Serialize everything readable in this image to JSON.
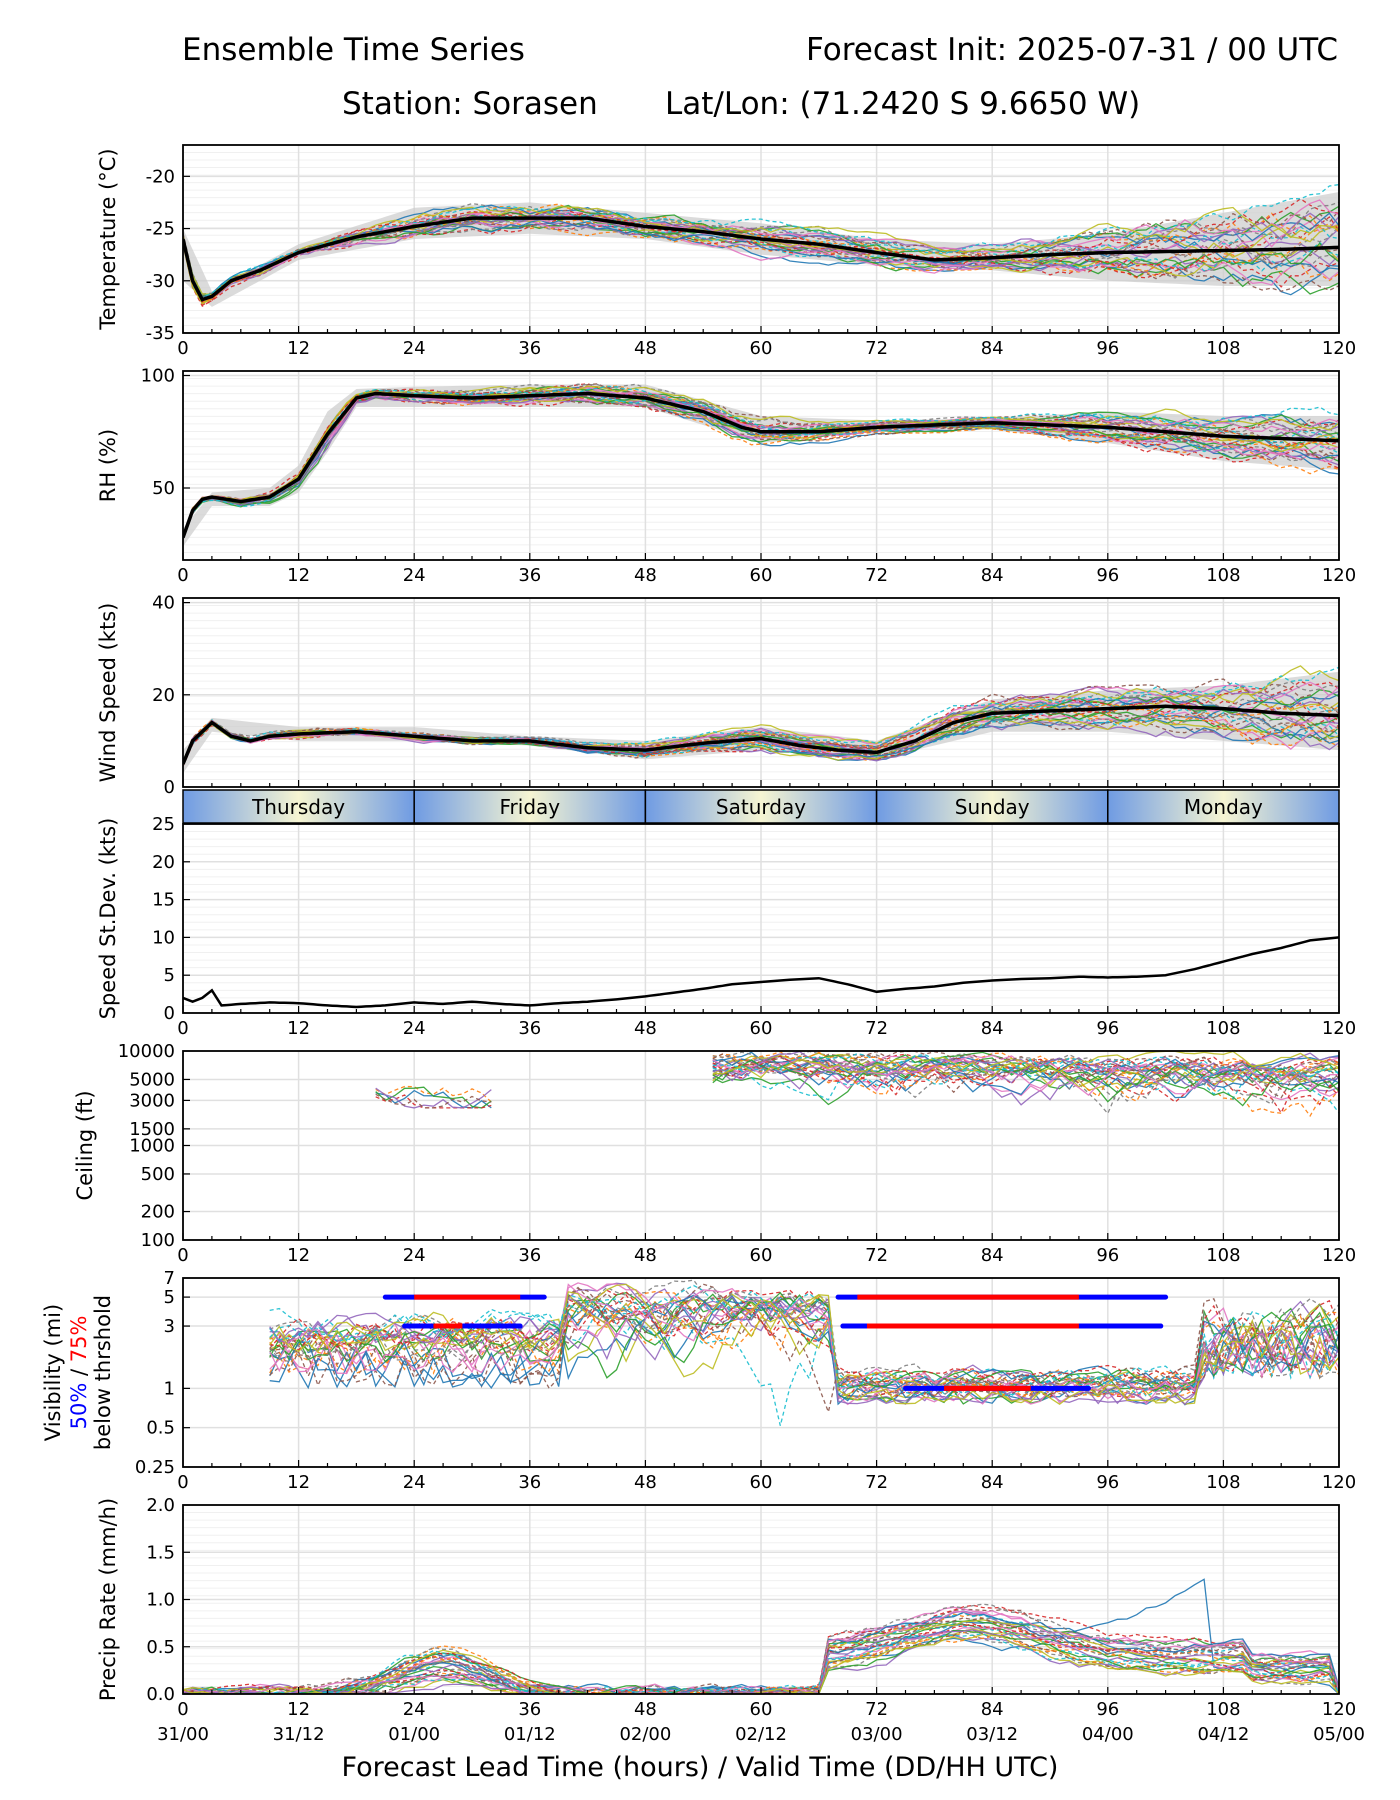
{
  "header": {
    "title": "Ensemble Time Series",
    "init": "Forecast Init: 2025-07-31 / 00 UTC",
    "station": "Station: Sorasen",
    "latlon": "Lat/Lon: (71.2420 S 9.6650 W)"
  },
  "xaxis_label": "Forecast Lead Time (hours) / Valid Time (DD/HH UTC)",
  "lead_ticks": [
    0,
    12,
    24,
    36,
    48,
    60,
    72,
    84,
    96,
    108,
    120
  ],
  "valid_ticks": [
    "31/00",
    "31/12",
    "01/00",
    "01/12",
    "02/00",
    "02/12",
    "03/00",
    "03/12",
    "04/00",
    "04/12",
    "05/00"
  ],
  "days": [
    "Thursday",
    "Friday",
    "Saturday",
    "Sunday",
    "Monday"
  ],
  "colors": {
    "mean": "#000000",
    "spread": "#cccccc",
    "threshold_50": "#0000ff",
    "threshold_75": "#ff0000",
    "grid": "#e0e0e0",
    "day_band_light": "#f6f5d2",
    "day_band_dark": "#6f9be3",
    "members": [
      "#1f77b4",
      "#ff7f0e",
      "#2ca02c",
      "#d62728",
      "#9467bd",
      "#8c564b",
      "#e377c2",
      "#7f7f7f",
      "#bcbd22",
      "#17becf"
    ]
  },
  "chart_data": [
    {
      "type": "line",
      "ylabel": "Temperature (°C)",
      "ylim": [
        -35,
        -17
      ],
      "yticks": [
        -35,
        -30,
        -25,
        -20
      ],
      "grid": true,
      "mean": {
        "x": [
          0,
          1,
          2,
          3,
          5,
          8,
          12,
          18,
          24,
          30,
          36,
          42,
          48,
          54,
          60,
          66,
          72,
          78,
          84,
          90,
          96,
          102,
          108,
          114,
          120
        ],
        "y": [
          -26,
          -30,
          -31.8,
          -31.5,
          -30,
          -29,
          -27.3,
          -25.8,
          -24.8,
          -24,
          -24,
          -24,
          -24.8,
          -25.3,
          -26,
          -26.5,
          -27.3,
          -28,
          -27.8,
          -27.5,
          -27.3,
          -27.2,
          -27.1,
          -27,
          -26.8
        ]
      },
      "spread": {
        "x": [
          0,
          3,
          12,
          24,
          36,
          48,
          60,
          72,
          84,
          96,
          108,
          120
        ],
        "lo": [
          -30,
          -32.5,
          -28,
          -26,
          -25.5,
          -26,
          -27.5,
          -28.5,
          -29,
          -30,
          -30.5,
          -30.5
        ],
        "hi": [
          -25,
          -31,
          -26.5,
          -23,
          -22.5,
          -23.5,
          -24.5,
          -26,
          -26.5,
          -25.5,
          -23.5,
          -21.5
        ]
      }
    },
    {
      "type": "line",
      "ylabel": "RH (%)",
      "ylim": [
        18,
        102
      ],
      "yticks": [
        50,
        100
      ],
      "grid": true,
      "mean": {
        "x": [
          0,
          1,
          2,
          3,
          6,
          9,
          12,
          15,
          18,
          20,
          24,
          30,
          36,
          42,
          48,
          54,
          58,
          60,
          66,
          72,
          78,
          84,
          90,
          96,
          102,
          108,
          114,
          120
        ],
        "y": [
          28,
          40,
          45,
          46,
          44,
          46,
          54,
          74,
          90,
          92,
          91,
          90,
          91,
          92,
          90,
          84,
          77,
          75,
          75,
          77,
          78,
          79,
          78,
          77,
          75,
          73,
          72,
          71
        ]
      },
      "spread": {
        "x": [
          0,
          3,
          9,
          12,
          15,
          18,
          24,
          36,
          48,
          60,
          72,
          84,
          96,
          108,
          120
        ],
        "lo": [
          24,
          42,
          42,
          48,
          66,
          86,
          86,
          86,
          86,
          70,
          75,
          76,
          70,
          62,
          58
        ],
        "hi": [
          32,
          48,
          50,
          60,
          84,
          94,
          95,
          96,
          96,
          82,
          80,
          81,
          84,
          82,
          82
        ]
      }
    },
    {
      "type": "line",
      "ylabel": "Wind Speed (kts)",
      "ylim": [
        0,
        41
      ],
      "yticks": [
        0,
        20,
        40
      ],
      "grid": true,
      "mean": {
        "x": [
          0,
          1,
          2,
          3,
          5,
          7,
          9,
          12,
          18,
          24,
          30,
          36,
          42,
          48,
          54,
          60,
          64,
          68,
          72,
          76,
          80,
          84,
          90,
          96,
          102,
          108,
          114,
          120
        ],
        "y": [
          5,
          10,
          12,
          14,
          11,
          10,
          11,
          11.5,
          12,
          11,
          10,
          10,
          8.5,
          8,
          9.5,
          10.5,
          9,
          8,
          7.5,
          10,
          14,
          16,
          16.5,
          17,
          17.5,
          17,
          16,
          15.5
        ]
      },
      "spread": {
        "x": [
          0,
          3,
          12,
          24,
          36,
          48,
          60,
          72,
          84,
          96,
          108,
          120
        ],
        "lo": [
          3,
          12,
          10,
          10,
          9,
          6,
          8,
          6,
          12,
          12,
          10,
          8
        ],
        "hi": [
          8,
          15,
          13,
          13,
          11,
          10,
          13,
          10,
          19,
          21,
          22,
          25
        ]
      }
    },
    {
      "type": "line",
      "ylabel": "Speed St.Dev. (kts)",
      "ylim": [
        0,
        25
      ],
      "yticks": [
        0,
        5,
        10,
        15,
        20,
        25
      ],
      "grid": true,
      "mean": {
        "x": [
          0,
          1,
          2,
          3,
          4,
          6,
          9,
          12,
          15,
          18,
          21,
          24,
          27,
          30,
          33,
          36,
          39,
          42,
          45,
          48,
          51,
          54,
          57,
          60,
          63,
          66,
          69,
          72,
          75,
          78,
          81,
          84,
          87,
          90,
          93,
          96,
          99,
          102,
          105,
          108,
          111,
          114,
          117,
          120
        ],
        "y": [
          2,
          1.5,
          2,
          3,
          1,
          1.2,
          1.4,
          1.3,
          1.0,
          0.8,
          1.0,
          1.4,
          1.2,
          1.5,
          1.2,
          1.0,
          1.3,
          1.5,
          1.8,
          2.2,
          2.7,
          3.2,
          3.8,
          4.1,
          4.4,
          4.6,
          3.8,
          2.8,
          3.2,
          3.5,
          4.0,
          4.3,
          4.5,
          4.6,
          4.8,
          4.7,
          4.8,
          5.0,
          5.8,
          6.8,
          7.8,
          8.6,
          9.6,
          10.0
        ]
      }
    },
    {
      "type": "line",
      "ylabel": "Ceiling (ft)",
      "ylim": [
        100,
        10000
      ],
      "yscale": "log",
      "yticks": [
        100,
        200,
        500,
        1000,
        1500,
        3000,
        5000,
        10000
      ],
      "grid": true
    },
    {
      "type": "line",
      "ylabel": "Visibility (mi)",
      "ylabel_parts": [
        "50%",
        " / ",
        "75%",
        "below thrshold"
      ],
      "ylim": [
        0.25,
        7
      ],
      "yscale": "log",
      "yticks": [
        0.25,
        0.5,
        1,
        3,
        5,
        7
      ],
      "grid": true,
      "threshold_bars": [
        {
          "level": 5,
          "x0": 21,
          "x1": 37.5,
          "red": [
            [
              24,
              35
            ]
          ]
        },
        {
          "level": 3,
          "x0": 23,
          "x1": 35,
          "red": [
            [
              26,
              29
            ]
          ]
        },
        {
          "level": 5,
          "x0": 68,
          "x1": 102,
          "red": [
            [
              70,
              93
            ]
          ]
        },
        {
          "level": 3,
          "x0": 68.5,
          "x1": 101.5,
          "red": [
            [
              71,
              93
            ]
          ]
        },
        {
          "level": 1,
          "x0": 75,
          "x1": 94,
          "red": [
            [
              79,
              88
            ]
          ]
        }
      ]
    },
    {
      "type": "line",
      "ylabel": "Precip Rate (mm/h)",
      "ylim": [
        0,
        2
      ],
      "yticks": [
        0.0,
        0.5,
        1.0,
        1.5,
        2.0
      ],
      "grid": true
    }
  ]
}
